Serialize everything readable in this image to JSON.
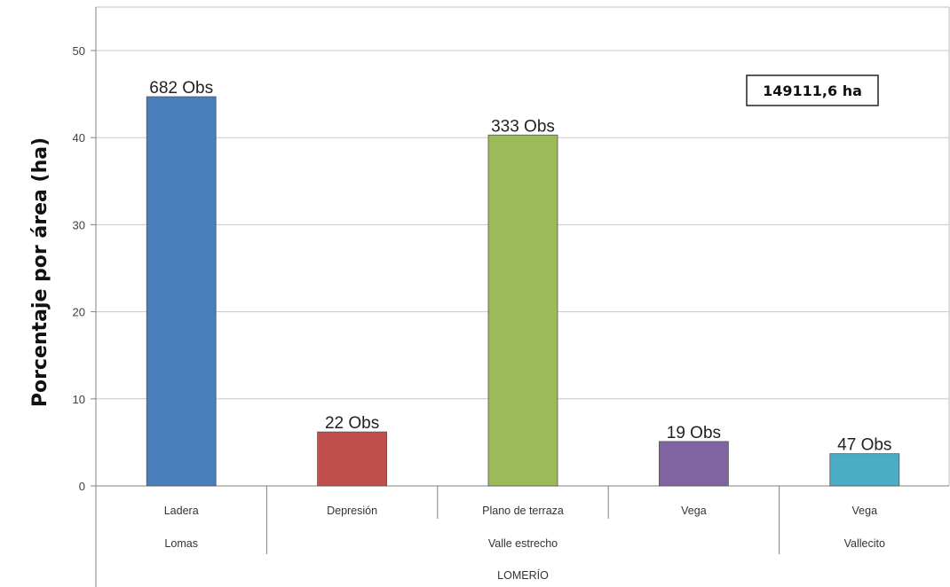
{
  "chart_data": {
    "type": "bar",
    "ylabel": "Porcentaje por área (ha)",
    "ylim": [
      0,
      55
    ],
    "yticks": [
      "0",
      "10",
      "20",
      "30",
      "40",
      "50"
    ],
    "annotation": "149111,6 ha",
    "grid": true,
    "categories": [
      "Ladera",
      "Depresión",
      "Plano de terraza",
      "Vega",
      "Vega"
    ],
    "values": [
      44.7,
      6.2,
      40.3,
      5.1,
      3.7
    ],
    "data_labels": [
      "682 Obs",
      "22 Obs",
      "333 Obs",
      "19 Obs",
      "47 Obs"
    ],
    "colors": [
      "#4a7ebb",
      "#c0504d",
      "#9bbb59",
      "#8064a2",
      "#4bacc6"
    ],
    "groups": [
      {
        "label": "Lomas",
        "span": [
          0,
          0
        ]
      },
      {
        "label": "Valle estrecho",
        "span": [
          1,
          3
        ]
      },
      {
        "label": "Vallecito",
        "span": [
          4,
          4
        ]
      }
    ],
    "supergroup": "LOMERÍO"
  }
}
